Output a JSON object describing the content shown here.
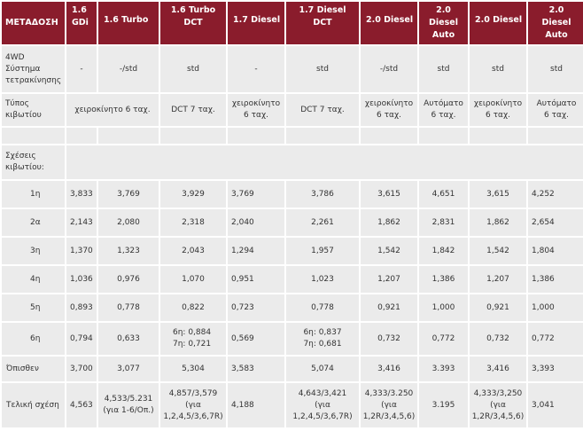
{
  "headers": [
    "ΜΕΤΑΔΟΣΗ",
    "1.6\nGDi",
    "1.6 Turbo",
    "1.6 Turbo\nDCT",
    "1.7 Diesel",
    "1.7 Diesel\nDCT",
    "2.0 Diesel",
    "2.0\nDiesel\nAuto",
    "2.0 Diesel",
    "2.0\nDiesel\nAuto"
  ],
  "row_4wd": {
    "label": "4WD\nΣύστημα\nτετρακίνησης",
    "values": [
      "-",
      "-/std",
      "std",
      "-",
      "std",
      "-/std",
      "std",
      "std",
      "std"
    ]
  },
  "row_gearbox": {
    "label": "Τύπος\nκιβωτίου",
    "manual_6": "χειροκίνητο 6 ταχ.",
    "dct_7": "DCT 7 ταχ.",
    "manual_6_wrap": "χειροκίνητο\n6 ταχ.",
    "dct_7_b": "DCT 7 ταχ.",
    "manual_6_b": "χειροκίνητο\n6 ταχ.",
    "auto_6": "Αυτόματο\n6 ταχ.",
    "manual_6_c": "χειροκίνητο\n6 ταχ.",
    "auto_6_b": "Αυτόματο\n6 ταχ."
  },
  "ratios_label": "Σχέσεις\nκιβωτίου:",
  "gears": [
    {
      "label": "1η",
      "values": [
        "3,833",
        "3,769",
        "3,929",
        "3,769",
        "3,786",
        "3,615",
        "4,651",
        "3,615",
        "4,252"
      ]
    },
    {
      "label": "2α",
      "values": [
        "2,143",
        "2,080",
        "2,318",
        "2,040",
        "2,261",
        "1,862",
        "2,831",
        "1,862",
        "2,654"
      ]
    },
    {
      "label": "3η",
      "values": [
        "1,370",
        "1,323",
        "2,043",
        "1,294",
        "1,957",
        "1,542",
        "1,842",
        "1,542",
        "1,804"
      ]
    },
    {
      "label": "4η",
      "values": [
        "1,036",
        "0,976",
        "1,070",
        "0,951",
        "1,023",
        "1,207",
        "1,386",
        "1,207",
        "1,386"
      ]
    },
    {
      "label": "5η",
      "values": [
        "0,893",
        "0,778",
        "0,822",
        "0,723",
        "0,778",
        "0,921",
        "1,000",
        "0,921",
        "1,000"
      ]
    },
    {
      "label": "6η",
      "values": [
        "0,794",
        "0,633",
        "6η: 0,884\n7η: 0,721",
        "0,569",
        "6η: 0,837\n7η: 0,681",
        "0,732",
        "0,772",
        "0,732",
        "0,772"
      ]
    }
  ],
  "reverse": {
    "label": "Όπισθεν",
    "values": [
      "3,700",
      "3,077",
      "5,304",
      "3,583",
      "5,074",
      "3,416",
      "3.393",
      "3,416",
      "3,393"
    ]
  },
  "final": {
    "label": "Τελική σχέση",
    "values": [
      "4,563",
      "4,533/5.231\n(για 1-6/Οπ.)",
      "4,857/3,579\n(για\n1,2,4,5/3,6,7R)",
      "4,188",
      "4,643/3,421\n(για\n1,2,4,5/3,6,7R)",
      "4,333/3.250\n(για\n1,2R/3,4,5,6)",
      "3.195",
      "4,333/3,250\n(για\n1,2R/3,4,5,6)",
      "3,041"
    ]
  }
}
